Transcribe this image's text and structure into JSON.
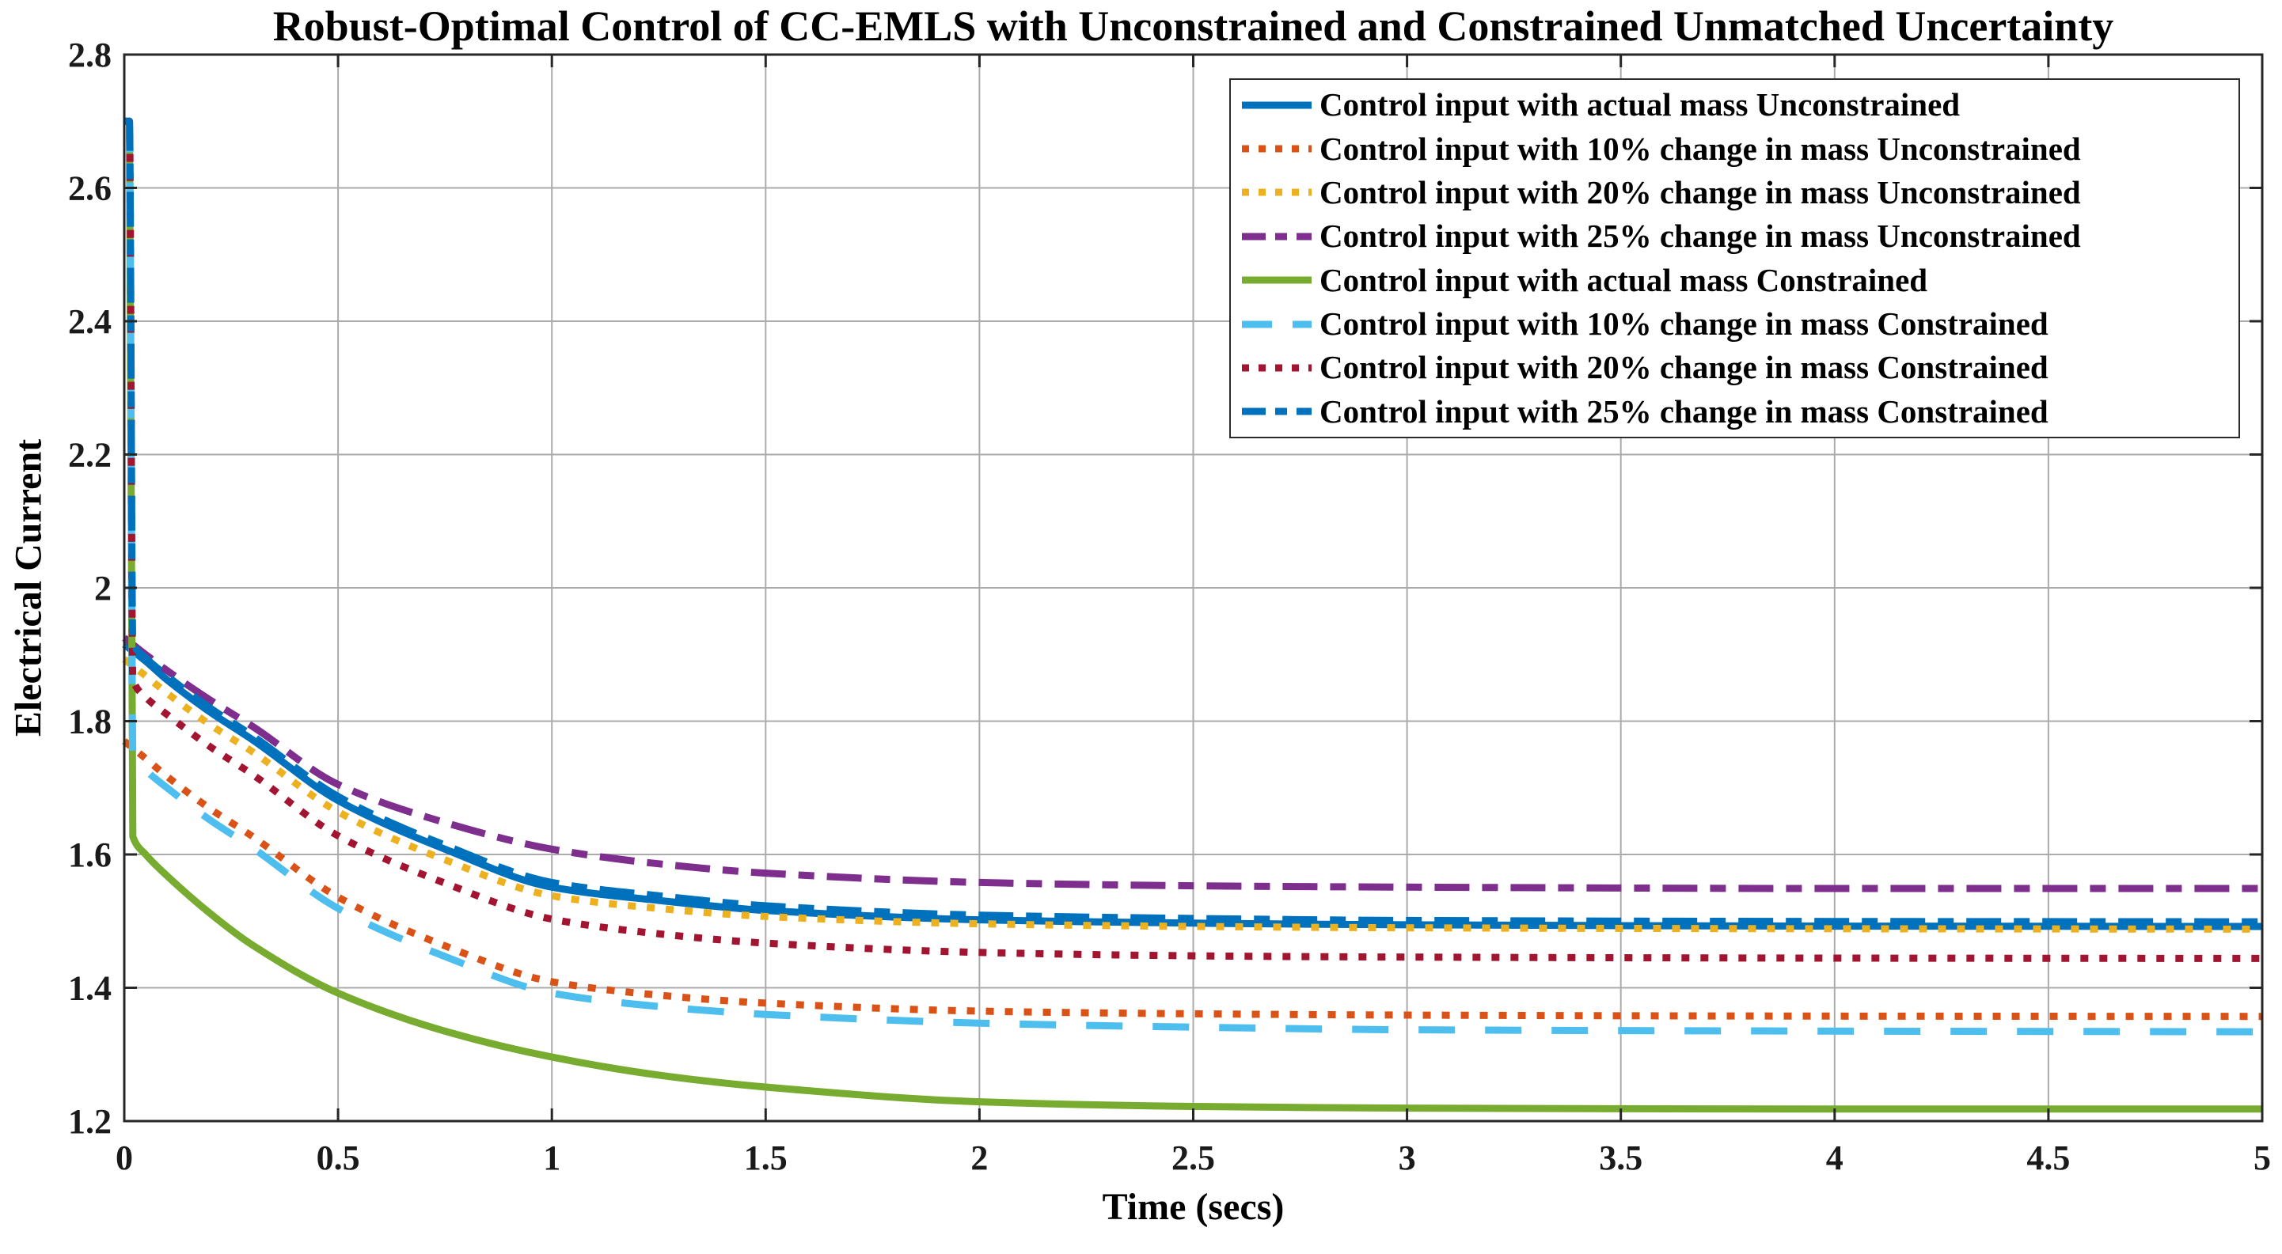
{
  "figure": {
    "title": "Robust-Optimal Control of CC-EMLS with Unconstrained and Constrained Unmatched Uncertainty",
    "xlabel": "Time (secs)",
    "ylabel": "Electrical Current"
  },
  "chart_data": {
    "type": "line",
    "title": "Robust-Optimal Control of CC-EMLS with Unconstrained and Constrained Unmatched Uncertainty",
    "xlabel": "Time (secs)",
    "ylabel": "Electrical Current",
    "xlim": [
      0,
      5
    ],
    "ylim": [
      1.2,
      2.8
    ],
    "grid": true,
    "legend_position": "top-right",
    "axis_color": "#262626",
    "grid_color": "#ababab",
    "x_ticks": [
      {
        "value": 0,
        "label": "0"
      },
      {
        "value": 0.5,
        "label": "0.5"
      },
      {
        "value": 1,
        "label": "1"
      },
      {
        "value": 1.5,
        "label": "1.5"
      },
      {
        "value": 2,
        "label": "2"
      },
      {
        "value": 2.5,
        "label": "2.5"
      },
      {
        "value": 3,
        "label": "3"
      },
      {
        "value": 3.5,
        "label": "3.5"
      },
      {
        "value": 4,
        "label": "4"
      },
      {
        "value": 4.5,
        "label": "4.5"
      },
      {
        "value": 5,
        "label": "5"
      }
    ],
    "y_ticks": [
      {
        "value": 1.2,
        "label": "1.2"
      },
      {
        "value": 1.4,
        "label": "1.4"
      },
      {
        "value": 1.6,
        "label": "1.6"
      },
      {
        "value": 1.8,
        "label": "1.8"
      },
      {
        "value": 2,
        "label": "2"
      },
      {
        "value": 2.2,
        "label": "2.2"
      },
      {
        "value": 2.4,
        "label": "2.4"
      },
      {
        "value": 2.6,
        "label": "2.6"
      },
      {
        "value": 2.8,
        "label": "2.8"
      }
    ],
    "series": [
      {
        "name": "Control input with actual mass Unconstrained",
        "color": "#0072BD",
        "style": "solid",
        "points": [
          [
            0,
            1.915
          ],
          [
            0.05,
            1.89
          ],
          [
            0.1,
            1.862
          ],
          [
            0.2,
            1.814
          ],
          [
            0.3,
            1.772
          ],
          [
            0.5,
            1.681
          ],
          [
            0.75,
            1.608
          ],
          [
            1,
            1.551
          ],
          [
            1.25,
            1.531
          ],
          [
            1.5,
            1.516
          ],
          [
            2,
            1.502
          ],
          [
            2.5,
            1.497
          ],
          [
            3,
            1.4945
          ],
          [
            4,
            1.4925
          ],
          [
            5,
            1.492
          ]
        ]
      },
      {
        "name": "Control input with 10% change in mass Unconstrained",
        "color": "#D95319",
        "style": "dotted",
        "points": [
          [
            0,
            1.77
          ],
          [
            0.05,
            1.744
          ],
          [
            0.1,
            1.717
          ],
          [
            0.2,
            1.669
          ],
          [
            0.3,
            1.627
          ],
          [
            0.5,
            1.536
          ],
          [
            0.75,
            1.463
          ],
          [
            1,
            1.409
          ],
          [
            1.25,
            1.389
          ],
          [
            1.5,
            1.377
          ],
          [
            2,
            1.365
          ],
          [
            2.5,
            1.361
          ],
          [
            3,
            1.359
          ],
          [
            4,
            1.3575
          ],
          [
            5,
            1.357
          ]
        ]
      },
      {
        "name": "Control input with 20% change in mass Unconstrained",
        "color": "#EDB120",
        "style": "dotted",
        "points": [
          [
            0,
            1.893
          ],
          [
            0.05,
            1.868
          ],
          [
            0.1,
            1.842
          ],
          [
            0.2,
            1.795
          ],
          [
            0.3,
            1.754
          ],
          [
            0.5,
            1.664
          ],
          [
            0.75,
            1.592
          ],
          [
            1,
            1.538
          ],
          [
            1.25,
            1.519
          ],
          [
            1.5,
            1.507
          ],
          [
            2,
            1.496
          ],
          [
            2.5,
            1.492
          ],
          [
            3,
            1.49
          ],
          [
            4,
            1.4885
          ],
          [
            5,
            1.488
          ]
        ]
      },
      {
        "name": "Control input with 25% change in mass Unconstrained",
        "color": "#7E2F8E",
        "style": "dashdot",
        "points": [
          [
            0,
            1.925
          ],
          [
            0.05,
            1.9
          ],
          [
            0.1,
            1.876
          ],
          [
            0.2,
            1.832
          ],
          [
            0.3,
            1.792
          ],
          [
            0.5,
            1.705
          ],
          [
            0.75,
            1.648
          ],
          [
            1,
            1.608
          ],
          [
            1.25,
            1.586
          ],
          [
            1.5,
            1.572
          ],
          [
            2,
            1.558
          ],
          [
            2.5,
            1.553
          ],
          [
            3,
            1.551
          ],
          [
            4,
            1.549
          ],
          [
            5,
            1.549
          ]
        ]
      },
      {
        "name": "Control input with actual mass Constrained",
        "color": "#77AC30",
        "style": "solid",
        "points": [
          [
            0,
            2.7
          ],
          [
            0.012,
            2.7
          ],
          [
            0.02,
            1.627
          ],
          [
            0.05,
            1.6
          ],
          [
            0.1,
            1.568
          ],
          [
            0.2,
            1.512
          ],
          [
            0.3,
            1.464
          ],
          [
            0.5,
            1.392
          ],
          [
            0.75,
            1.335
          ],
          [
            1,
            1.296
          ],
          [
            1.25,
            1.269
          ],
          [
            1.5,
            1.251
          ],
          [
            2,
            1.229
          ],
          [
            2.5,
            1.222
          ],
          [
            3,
            1.2195
          ],
          [
            4,
            1.218
          ],
          [
            5,
            1.218
          ]
        ]
      },
      {
        "name": "Control input with 10% change in mass Constrained",
        "color": "#4DBEEE",
        "style": "dashed",
        "points": [
          [
            0,
            2.7
          ],
          [
            0.012,
            2.7
          ],
          [
            0.02,
            1.753
          ],
          [
            0.05,
            1.727
          ],
          [
            0.1,
            1.7
          ],
          [
            0.2,
            1.652
          ],
          [
            0.3,
            1.61
          ],
          [
            0.5,
            1.519
          ],
          [
            0.75,
            1.447
          ],
          [
            1,
            1.392
          ],
          [
            1.25,
            1.372
          ],
          [
            1.5,
            1.36
          ],
          [
            2,
            1.347
          ],
          [
            2.5,
            1.341
          ],
          [
            3,
            1.337
          ],
          [
            4,
            1.335
          ],
          [
            5,
            1.334
          ]
        ]
      },
      {
        "name": "Control input with 20% change in mass Constrained",
        "color": "#A2142F",
        "style": "dotted",
        "points": [
          [
            0,
            2.7
          ],
          [
            0.012,
            2.7
          ],
          [
            0.02,
            1.862
          ],
          [
            0.05,
            1.836
          ],
          [
            0.1,
            1.81
          ],
          [
            0.2,
            1.762
          ],
          [
            0.3,
            1.72
          ],
          [
            0.5,
            1.628
          ],
          [
            0.75,
            1.557
          ],
          [
            1,
            1.503
          ],
          [
            1.25,
            1.481
          ],
          [
            1.5,
            1.467
          ],
          [
            2,
            1.453
          ],
          [
            2.5,
            1.448
          ],
          [
            3,
            1.446
          ],
          [
            4,
            1.4445
          ],
          [
            5,
            1.444
          ]
        ]
      },
      {
        "name": "Control input with 25% change in mass Constrained",
        "color": "#0072BD",
        "style": "dashdot",
        "points": [
          [
            0,
            2.7
          ],
          [
            0.012,
            2.7
          ],
          [
            0.02,
            1.917
          ],
          [
            0.05,
            1.895
          ],
          [
            0.1,
            1.868
          ],
          [
            0.2,
            1.82
          ],
          [
            0.3,
            1.778
          ],
          [
            0.5,
            1.687
          ],
          [
            0.75,
            1.614
          ],
          [
            1,
            1.558
          ],
          [
            1.25,
            1.538
          ],
          [
            1.5,
            1.523
          ],
          [
            2,
            1.509
          ],
          [
            2.5,
            1.504
          ],
          [
            3,
            1.501
          ],
          [
            4,
            1.4995
          ],
          [
            5,
            1.499
          ]
        ]
      }
    ]
  }
}
